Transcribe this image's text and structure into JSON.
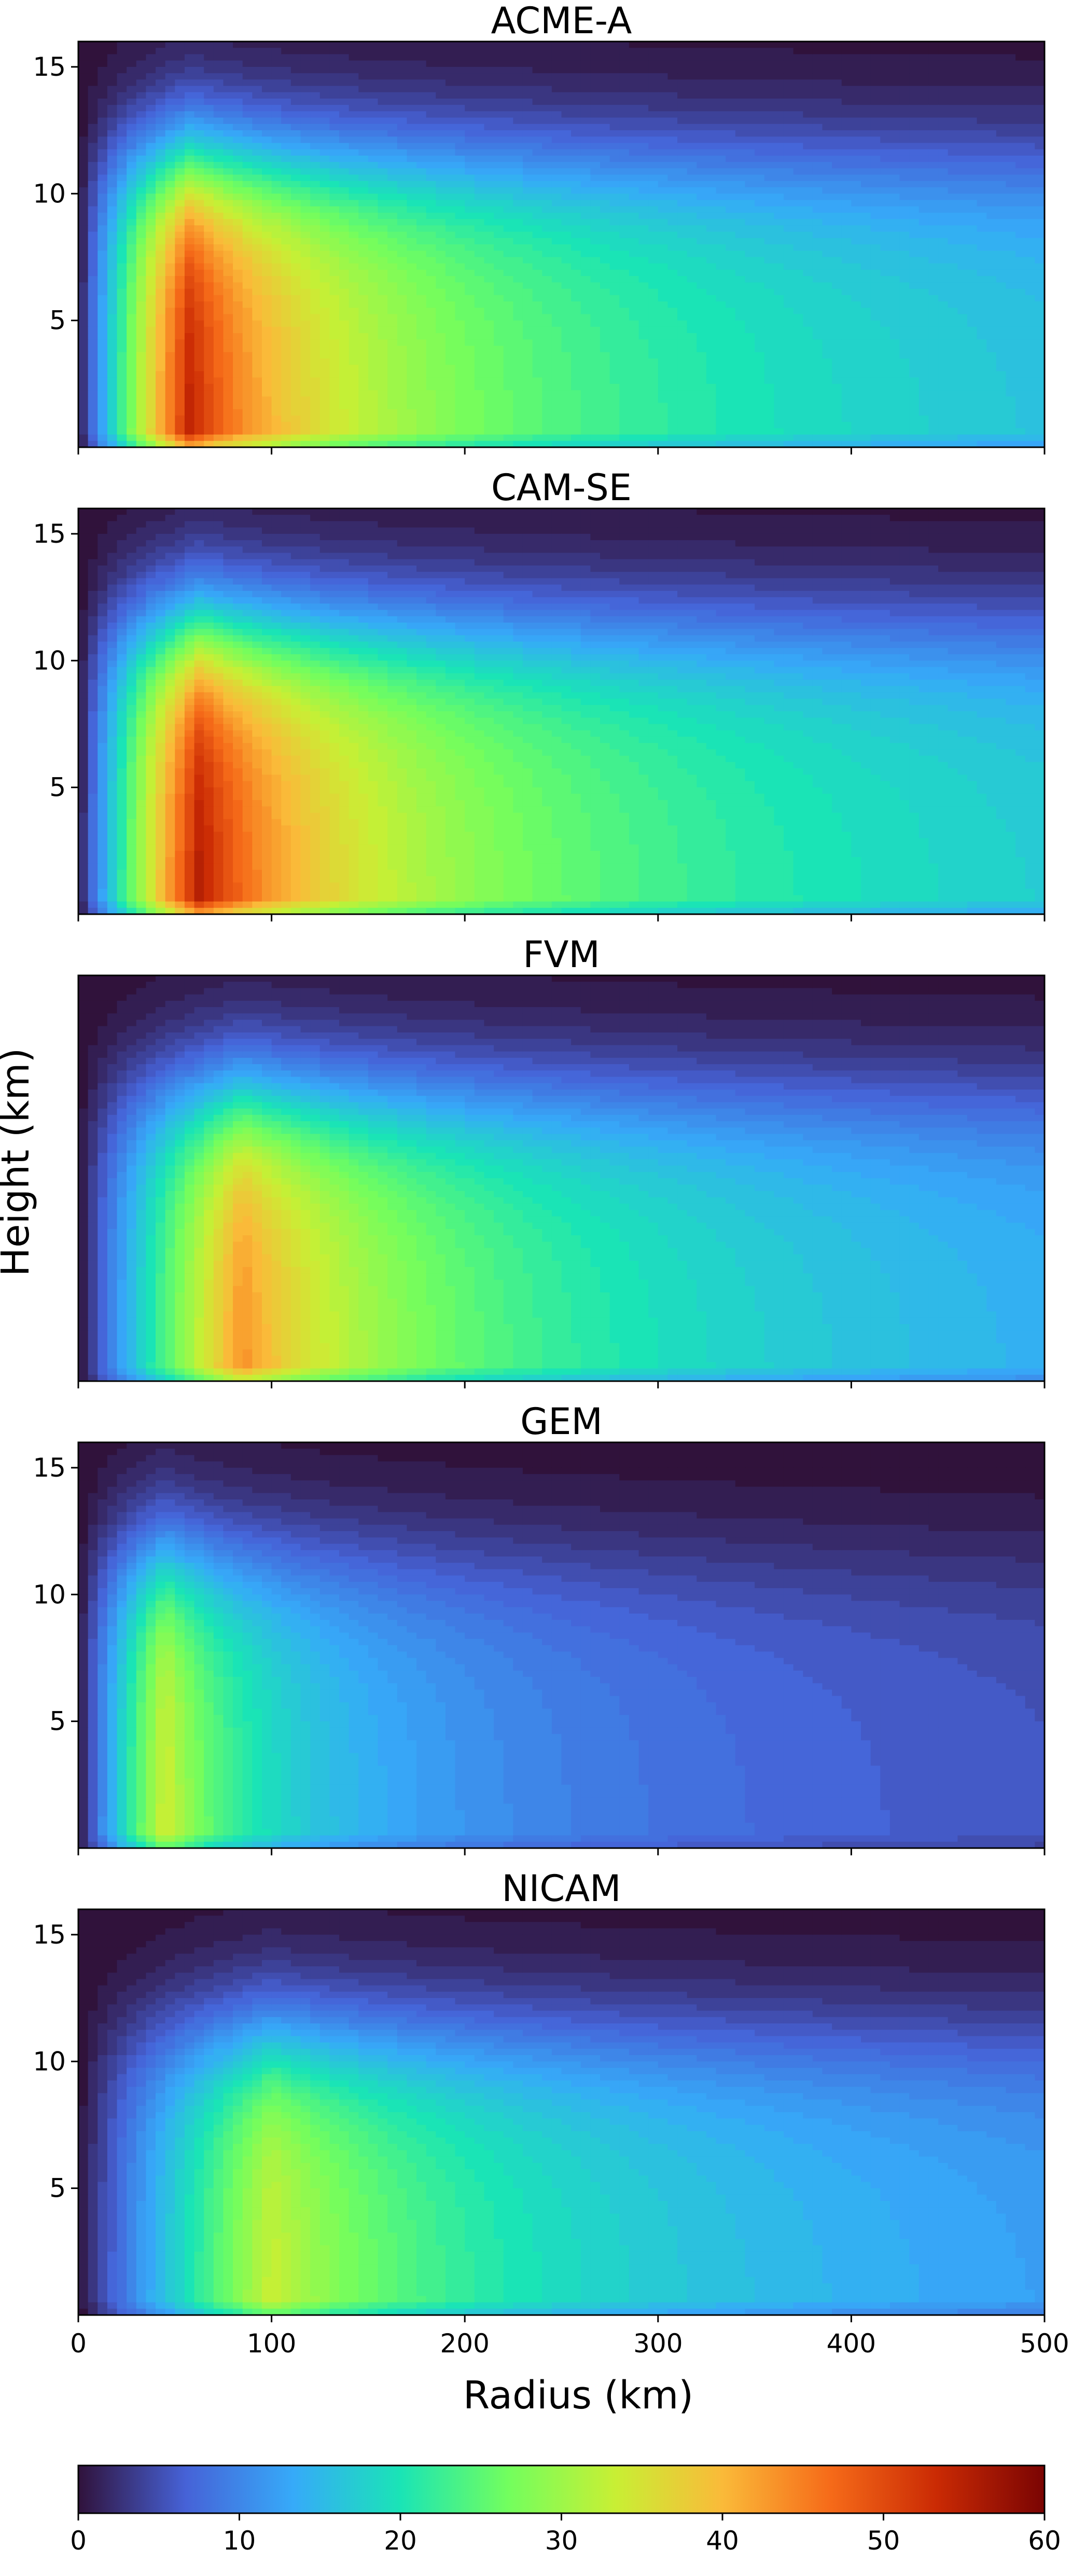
{
  "chart_data": {
    "type": "heatmap",
    "figure": {
      "xlabel": "Radius (km)",
      "ylabel": "Height (km)",
      "xlim": [
        0,
        500
      ],
      "ylim": [
        0,
        16
      ],
      "x_ticks": [
        0,
        100,
        200,
        300,
        400,
        500
      ],
      "x_tick_labels": [
        "0",
        "100",
        "200",
        "300",
        "400",
        "500"
      ],
      "y_ticks": [
        5,
        10,
        15
      ],
      "y_tick_labels": [
        "5",
        "10",
        "15"
      ],
      "colormap": "turbo",
      "colorbar": {
        "min": 0,
        "max": 60,
        "ticks": [
          0,
          10,
          20,
          30,
          40,
          50,
          60
        ],
        "tick_labels": [
          "0",
          "10",
          "20",
          "30",
          "40",
          "50",
          "60"
        ],
        "stops": [
          "#30123b",
          "#4662d7",
          "#36aaf9",
          "#1ae4b6",
          "#72fe5e",
          "#c8ef34",
          "#faba39",
          "#f66b19",
          "#ca2a04",
          "#7a0403"
        ]
      }
    },
    "panels": [
      {
        "title": "ACME-A",
        "show_y_ticks": true,
        "show_x_tick_labels": false,
        "rmw_km": 58,
        "vmax": 55,
        "tropopause_km": 15.5,
        "decay": 0.55,
        "top_falloff": 4.5
      },
      {
        "title": "CAM-SE",
        "show_y_ticks": true,
        "show_x_tick_labels": false,
        "rmw_km": 63,
        "vmax": 56,
        "tropopause_km": 15.5,
        "decay": 0.55,
        "top_falloff": 4.5
      },
      {
        "title": "FVM",
        "show_y_ticks": false,
        "show_x_tick_labels": false,
        "rmw_km": 85,
        "vmax": 44,
        "tropopause_km": 15.5,
        "decay": 0.62,
        "top_falloff": 4.5
      },
      {
        "title": "GEM",
        "show_y_ticks": true,
        "show_x_tick_labels": false,
        "rmw_km": 45,
        "vmax": 35,
        "tropopause_km": 14.5,
        "decay": 0.72,
        "top_falloff": 3.2
      },
      {
        "title": "NICAM",
        "show_y_ticks": true,
        "show_x_tick_labels": true,
        "rmw_km": 100,
        "vmax": 34,
        "tropopause_km": 13.0,
        "decay": 0.6,
        "top_falloff": 2.2
      }
    ]
  }
}
